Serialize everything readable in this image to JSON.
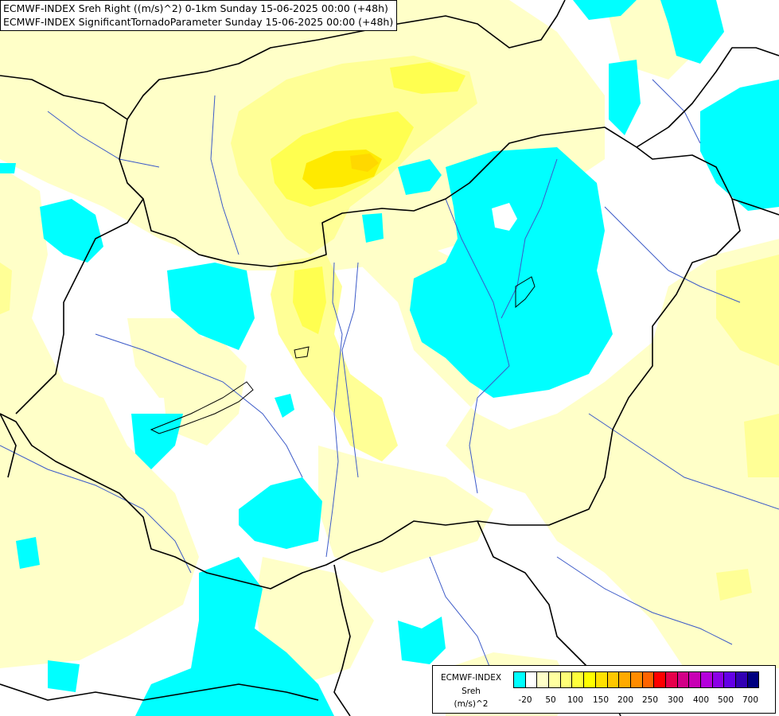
{
  "title": {
    "line1": "ECMWF-INDEX Sreh Right ((m/s)^2) 0-1km Sunday 15-06-2025 00:00 (+48h)",
    "line2": "ECMWF-INDEX SignificantTornadoParameter Sunday 15-06-2025 00:00 (+48h)"
  },
  "legend": {
    "source": "ECMWF-INDEX",
    "variable": "Sreh",
    "unit": "(m/s)^2",
    "colors": [
      "#00ffff",
      "#ffffff",
      "#ffffc8",
      "#ffffa0",
      "#ffff78",
      "#ffff3c",
      "#ffff00",
      "#ffe100",
      "#ffc800",
      "#ffaa00",
      "#ff8c00",
      "#ff6400",
      "#ff0000",
      "#e6004b",
      "#d20087",
      "#c800b4",
      "#b400dc",
      "#8c00e6",
      "#6400e6",
      "#3200b4",
      "#000080"
    ],
    "tick_labels": [
      "-20",
      "50",
      "100",
      "150",
      "200",
      "250",
      "300",
      "400",
      "500",
      "700"
    ]
  },
  "palette": {
    "background": "#ffffff",
    "low_cyan": "#00ffff",
    "pale_yellow": "#ffffc8",
    "yellow": "#ffff96",
    "strong_yellow": "#ffff50",
    "core_yellow": "#ffea00",
    "rivers": "#3c5ac8",
    "borders": "#000000"
  }
}
